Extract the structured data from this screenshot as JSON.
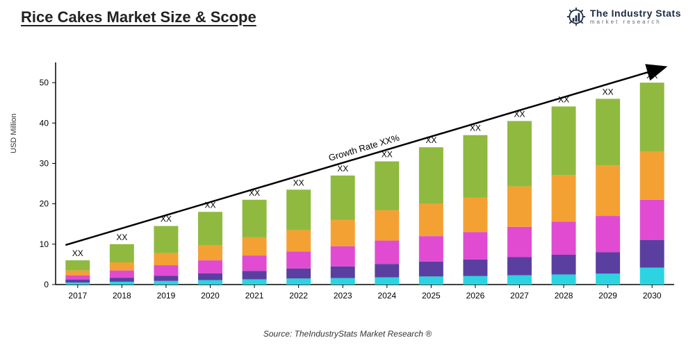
{
  "title": "Rice Cakes Market Size & Scope",
  "logo": {
    "main": "The Industry Stats",
    "sub": "market research"
  },
  "chart": {
    "type": "stacked-bar",
    "y_label": "USD Million",
    "ylim": [
      0,
      55
    ],
    "yticks": [
      0,
      10,
      20,
      30,
      40,
      50
    ],
    "categories": [
      "2017",
      "2018",
      "2019",
      "2020",
      "2021",
      "2022",
      "2023",
      "2024",
      "2025",
      "2026",
      "2027",
      "2028",
      "2029",
      "2030"
    ],
    "bar_labels": [
      "XX",
      "XX",
      "XX",
      "XX",
      "XX",
      "XX",
      "XX",
      "XX",
      "XX",
      "XX",
      "XX",
      "XX",
      "XX",
      "XX"
    ],
    "segment_colors": [
      "#2bd4e0",
      "#5a3fa0",
      "#e14bd1",
      "#f4a133",
      "#8fba3f"
    ],
    "series": [
      [
        0.5,
        0.7,
        0.9,
        1.1,
        1.3,
        1.5,
        1.6,
        1.8,
        2.0,
        2.1,
        2.3,
        2.5,
        2.7,
        4.2
      ],
      [
        0.7,
        1.0,
        1.3,
        1.7,
        2.1,
        2.5,
        2.9,
        3.3,
        3.7,
        4.1,
        4.5,
        4.9,
        5.3,
        6.8
      ],
      [
        1.1,
        1.8,
        2.6,
        3.2,
        3.8,
        4.2,
        5.0,
        5.8,
        6.3,
        6.8,
        7.5,
        8.2,
        9.0,
        10.0
      ],
      [
        1.2,
        2.0,
        3.0,
        3.8,
        4.5,
        5.3,
        6.5,
        7.5,
        8.0,
        8.5,
        10.0,
        11.5,
        12.5,
        12.0
      ],
      [
        2.5,
        4.5,
        6.7,
        8.2,
        9.3,
        10.0,
        11.0,
        12.1,
        14.0,
        15.5,
        16.2,
        17.0,
        16.5,
        17.0
      ]
    ],
    "growth_label": "Growth Rate XX%",
    "axis_color": "#000000",
    "text_color": "#000000",
    "label_fontsize": 12,
    "tick_fontsize": 12,
    "bar_label_fontsize": 12,
    "bar_width_ratio": 0.55,
    "background": "#ffffff"
  },
  "source": "Source: TheIndustryStats Market Research ®"
}
